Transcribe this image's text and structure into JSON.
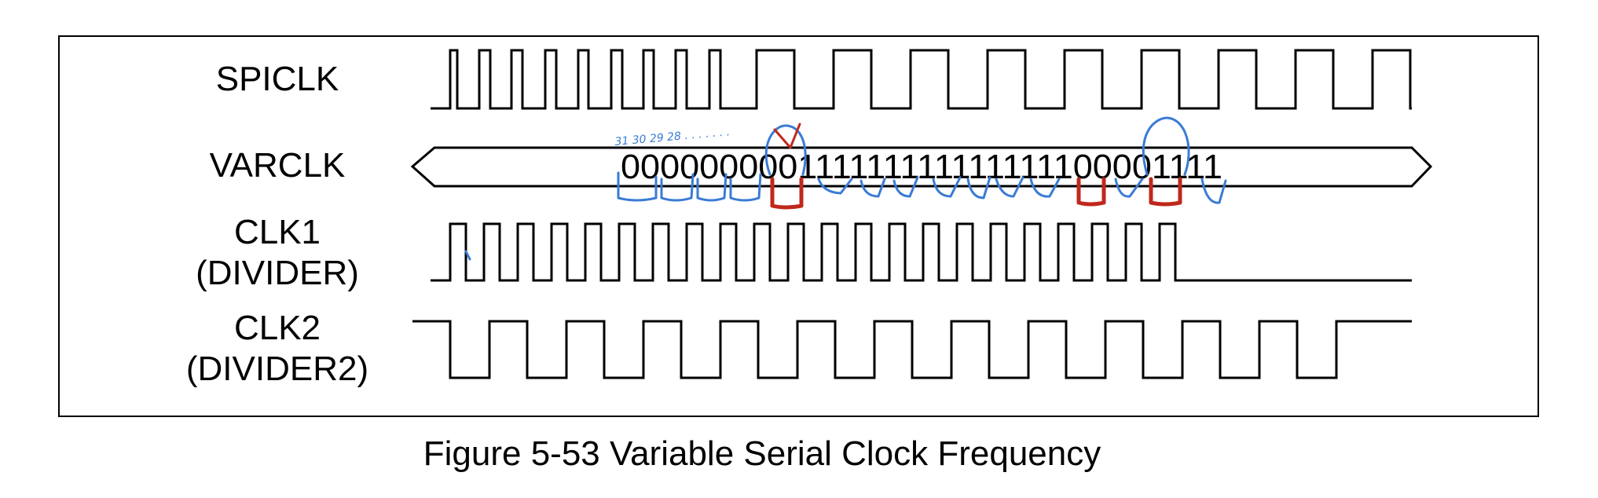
{
  "signals": [
    {
      "id": "spiclk",
      "label_lines": [
        "SPICLK"
      ]
    },
    {
      "id": "varclk",
      "label_lines": [
        "VARCLK"
      ]
    },
    {
      "id": "clk1",
      "label_lines": [
        "CLK1",
        "(DIVIDER)"
      ]
    },
    {
      "id": "clk2",
      "label_lines": [
        "CLK2",
        "(DIVIDER2)"
      ]
    }
  ],
  "varclk_bits": "000000000111111111111111100001111",
  "annotation_note": "31 30 29 28 . . . . . . .",
  "caption": "Figure 5-53 Variable Serial Clock Frequency",
  "colors": {
    "ink_blue": "#3a7bd5",
    "ink_red": "#c0281c",
    "line": "#000000"
  }
}
